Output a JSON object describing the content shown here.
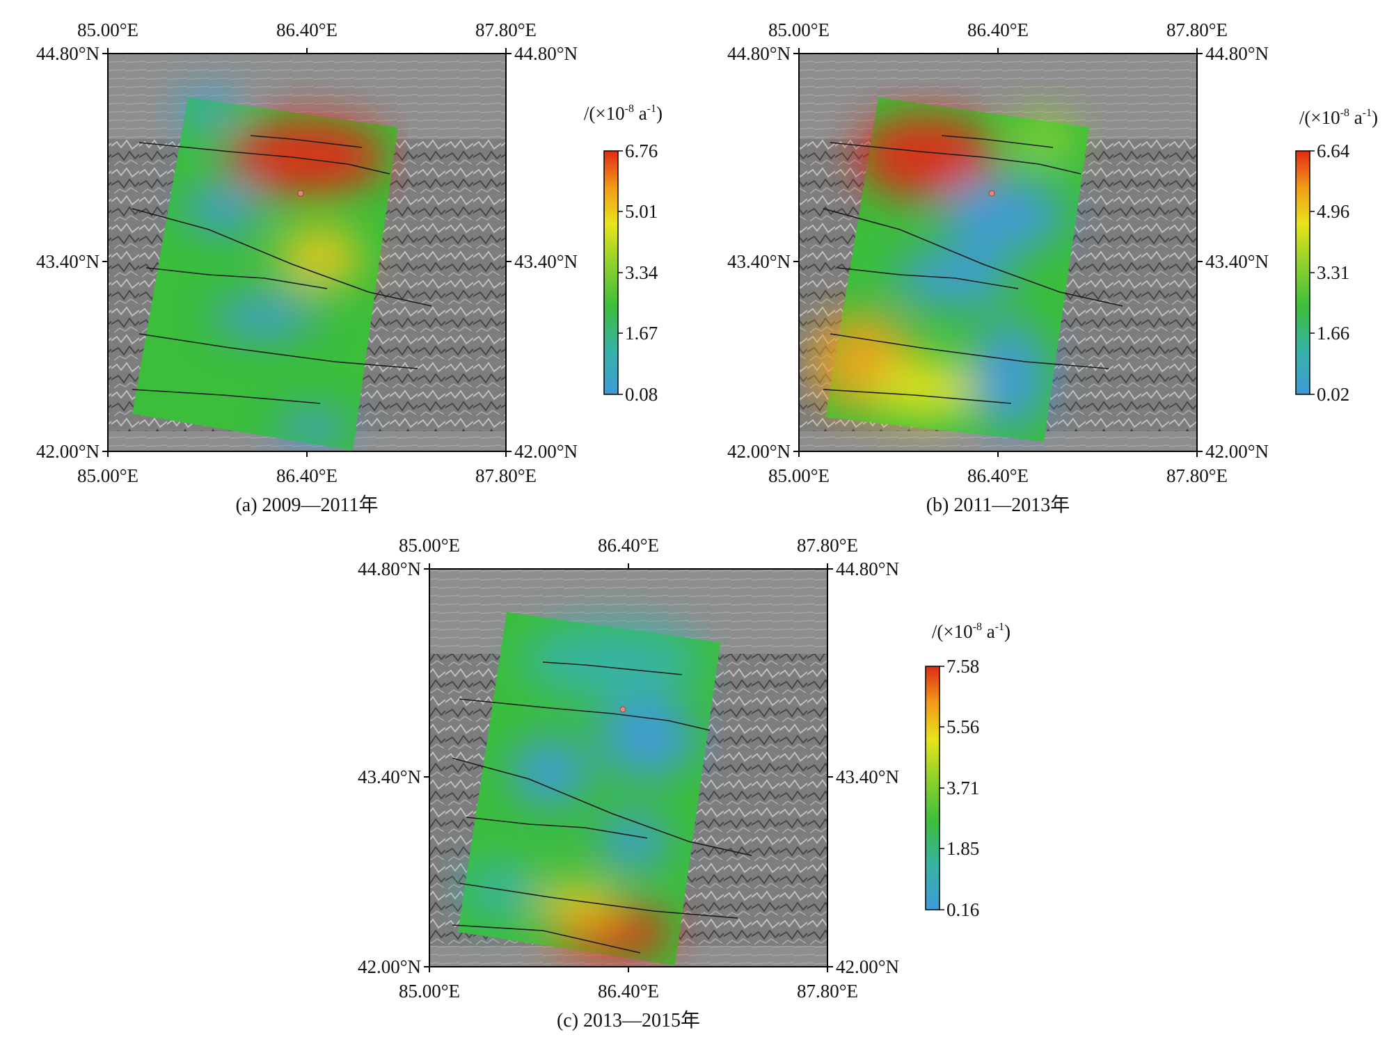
{
  "panels": [
    {
      "id": "a",
      "caption": "(a) 2009—2011年",
      "axes": {
        "lon_labels": [
          "85.00°E",
          "86.40°E",
          "87.80°E"
        ],
        "lat_labels": [
          "44.80°N",
          "43.40°N",
          "42.00°N"
        ]
      },
      "colorbar": {
        "unit_prefix": "/(×10",
        "unit_exp": "-8",
        "unit_mid": " a",
        "unit_exp2": "-1",
        "unit_suffix": ")",
        "ticks": [
          "6.76",
          "5.01",
          "3.34",
          "1.67",
          "0.08"
        ]
      }
    },
    {
      "id": "b",
      "caption": "(b) 2011—2013年",
      "axes": {
        "lon_labels": [
          "85.00°E",
          "86.40°E",
          "87.80°E"
        ],
        "lat_labels": [
          "44.80°N",
          "43.40°N",
          "42.00°N"
        ]
      },
      "colorbar": {
        "unit_prefix": "/(×10",
        "unit_exp": "-8",
        "unit_mid": " a",
        "unit_exp2": "-1",
        "unit_suffix": ")",
        "ticks": [
          "6.64",
          "4.96",
          "3.31",
          "1.66",
          "0.02"
        ]
      }
    },
    {
      "id": "c",
      "caption": "(c) 2013—2015年",
      "axes": {
        "lon_labels": [
          "85.00°E",
          "86.40°E",
          "87.80°E"
        ],
        "lat_labels": [
          "44.80°N",
          "43.40°N",
          "42.00°N"
        ]
      },
      "colorbar": {
        "unit_prefix": "/(×10",
        "unit_exp": "-8",
        "unit_mid": " a",
        "unit_exp2": "-1",
        "unit_suffix": ")",
        "ticks": [
          "7.58",
          "5.56",
          "3.71",
          "1.85",
          "0.16"
        ]
      }
    }
  ],
  "colors": {
    "colormap": [
      "#3f9ad8",
      "#37b3a6",
      "#3cbd3c",
      "#96d22a",
      "#e8e41a",
      "#f29b18",
      "#e02a16"
    ],
    "terrain_light": "#9a9a9a",
    "terrain_dark": "#4a4a4a",
    "fault_line": "#1a1a1a",
    "epicenter": "#e08a7a"
  }
}
